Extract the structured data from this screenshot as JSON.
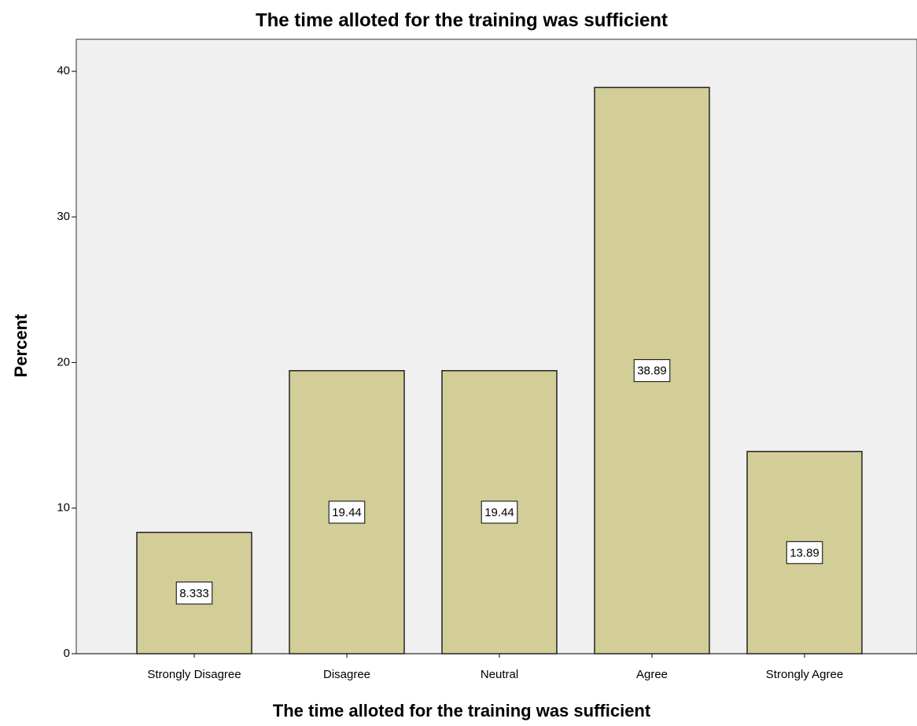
{
  "chart_data": {
    "type": "bar",
    "title": "The time alloted for the training was sufficient",
    "x_label": "The time alloted for the training was sufficient",
    "y_label": "Percent",
    "categories": [
      "Strongly Disagree",
      "Disagree",
      "Neutral",
      "Agree",
      "Strongly Agree"
    ],
    "values": [
      8.333,
      19.44,
      19.44,
      38.89,
      13.89
    ],
    "color": "#d3ce97",
    "ylim": [
      0,
      42.2
    ],
    "yticks": [
      0,
      10,
      20,
      30,
      40
    ],
    "grid": false
  }
}
